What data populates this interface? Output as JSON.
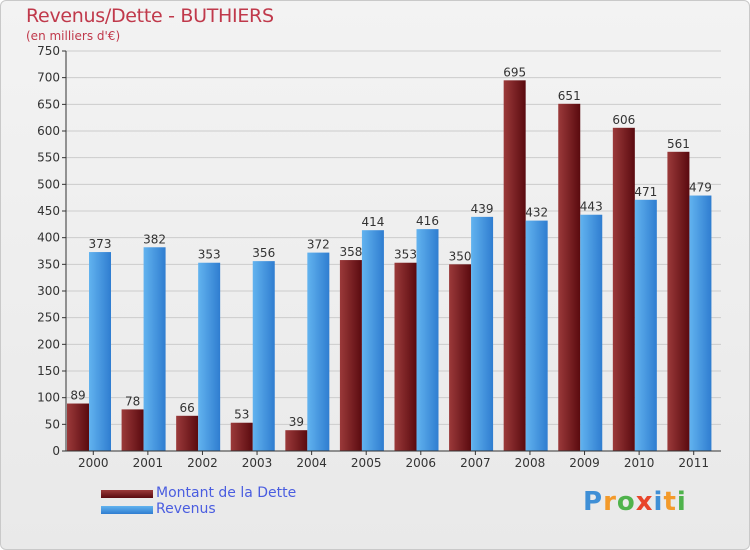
{
  "header": {
    "title": "Revenus/Dette - BUTHIERS",
    "subtitle": "(en milliers d'€)"
  },
  "legend": {
    "items": [
      {
        "label": "Montant de la Dette",
        "color": "#6e1f22"
      },
      {
        "label": "Revenus",
        "color": "#4a9ee2"
      }
    ]
  },
  "logo": {
    "letters": [
      "P",
      "r",
      "o",
      "x",
      "i",
      "t",
      "i"
    ],
    "colors": [
      "#3f8fd6",
      "#f39a2a",
      "#4fb34c",
      "#e8452b",
      "#3f8fd6",
      "#f39a2a",
      "#4fb34c"
    ]
  },
  "colors": {
    "debt_dark": "#5a0a0f",
    "debt_light": "#9b3a3a",
    "revenue_dark": "#2f7dd0",
    "revenue_light": "#62b3ef",
    "grid": "#cccccc",
    "axis": "#333333",
    "text": "#333333"
  },
  "chart_data": {
    "type": "bar",
    "title": "Revenus/Dette - BUTHIERS",
    "ylabel": "(en milliers d'€)",
    "xlabel": "",
    "ylim": [
      0,
      750
    ],
    "yticks": [
      0,
      50,
      100,
      150,
      200,
      250,
      300,
      350,
      400,
      450,
      500,
      550,
      600,
      650,
      700,
      750
    ],
    "grid": true,
    "categories": [
      "2000",
      "2001",
      "2002",
      "2003",
      "2004",
      "2005",
      "2006",
      "2007",
      "2008",
      "2009",
      "2010",
      "2011"
    ],
    "series": [
      {
        "name": "Montant de la Dette",
        "values": [
          89,
          78,
          66,
          53,
          39,
          358,
          353,
          350,
          695,
          651,
          606,
          561
        ]
      },
      {
        "name": "Revenus",
        "values": [
          373,
          382,
          353,
          356,
          372,
          414,
          416,
          439,
          432,
          443,
          471,
          479
        ]
      }
    ]
  }
}
